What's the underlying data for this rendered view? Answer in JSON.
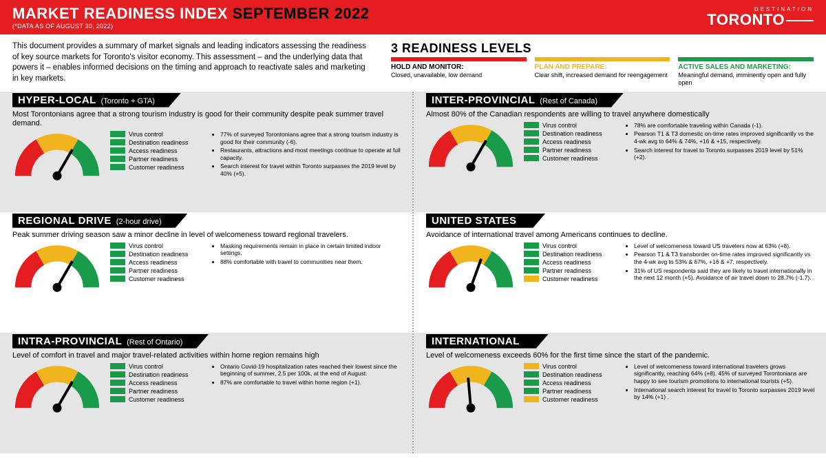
{
  "colors": {
    "red": "#e41d21",
    "yellow": "#f0b41e",
    "green": "#199b4a",
    "black": "#000000",
    "gray": "#e5e5e5"
  },
  "header": {
    "title_prefix": "MARKET READINESS INDEX",
    "title_month": "SEPTEMBER 2022",
    "subtitle": "(*DATA AS OF AUGUST 30, 2022)",
    "logo_small": "DESTINATION",
    "logo_big": "TORONTO"
  },
  "intro": "This document provides a summary of market signals and leading indicators assessing the readiness of key source markets for Toronto's visitor economy. This assessment – and the underlying data that powers it – enables informed decisions on the timing and approach to reactivate sales and marketing in key markets.",
  "readiness_title": "3 READINESS LEVELS",
  "levels": [
    {
      "color": "red",
      "name": "HOLD AND MONITOR:",
      "desc": "Closed, unavailable, low demand"
    },
    {
      "color": "yellow",
      "name": "PLAN AND PREPARE:",
      "desc": "Clear shift, increased demand for reengagement"
    },
    {
      "color": "green",
      "name": "ACTIVE SALES AND MARKETING:",
      "desc": "Meaningful demand, imminently open and fully open"
    }
  ],
  "indicator_labels": [
    "Virus control",
    "Destination readiness",
    "Access readiness",
    "Partner readiness",
    "Customer readiness"
  ],
  "gauge": {
    "arc_start_deg": -180,
    "arc_end_deg": 0,
    "seg_sweep_deg": 60
  },
  "markets": [
    {
      "id": "hyper-local",
      "gray": true,
      "col": 0,
      "name": "HYPER-LOCAL",
      "region": "(Toronto + GTA)",
      "summary": "Most Torontonians agree that a strong tourism industry is good for their community despite peak summer travel demand.",
      "needle_deg": 30,
      "indicators": [
        "green",
        "green",
        "green",
        "green",
        "green"
      ],
      "bullets": [
        "77% of surveyed Torontonians agree that a strong tourism industry is good for their community (-6).",
        "Restaurants, attractions and most meetings continue to operate at full capacity.",
        "Search interest for travel within Toronto surpasses the 2019 level by 40% (+5)."
      ]
    },
    {
      "id": "regional-drive",
      "gray": false,
      "col": 0,
      "name": "REGIONAL DRIVE",
      "region": "(2-hour drive)",
      "summary": "Peak summer driving season saw a minor decline in level of welcomeness toward regional travelers.",
      "needle_deg": 30,
      "indicators": [
        "green",
        "green",
        "green",
        "green",
        "green"
      ],
      "bullets": [
        "Masking requirements remain in place in certain limited indoor settings.",
        "88% comfortable with travel to communities near them."
      ]
    },
    {
      "id": "intra-provincial",
      "gray": true,
      "col": 0,
      "name": "INTRA-PROVINCIAL",
      "region": "(Rest of Ontario)",
      "summary": "Level of comfort in travel and major travel-related activities within home region remains high",
      "needle_deg": 30,
      "indicators": [
        "green",
        "green",
        "green",
        "green",
        "green"
      ],
      "bullets": [
        "Ontario Covid-19 hospitalization rates reached their lowest since the beginning of summer, 2.5 per 100k, at the end of August.",
        "87% are comfortable to travel within home region (+1)."
      ]
    },
    {
      "id": "inter-provincial",
      "gray": true,
      "col": 1,
      "name": "INTER-PROVINCIAL",
      "region": "(Rest of Canada)",
      "summary": "Almost 80% of the Canadian respondents are willing to travel anywhere domestically",
      "needle_deg": 30,
      "indicators": [
        "green",
        "green",
        "green",
        "green",
        "green"
      ],
      "bullets": [
        "78% are comfortable traveling within Canada (-1).",
        "Pearson T1 & T3 domestic on-time rates improved significantly vs the 4-wk avg to 64% & 74%, +16 & +15, respectively.",
        "Search interest for travel to Toronto surpasses 2019 level by 51% (+2)."
      ]
    },
    {
      "id": "united-states",
      "gray": false,
      "col": 1,
      "name": "UNITED STATES",
      "region": "",
      "summary": "Avoidance of international travel among Americans continues to decline.",
      "needle_deg": 20,
      "indicators": [
        "green",
        "green",
        "green",
        "green",
        "yellow"
      ],
      "bullets": [
        "Level of welcomeness toward US travelers now at 63% (+8).",
        "Pearson T1 & T3 transborder on-time rates improved significantly vs the 4-wk avg to 53% & 67%, +16 & +7, respectively.",
        "31% of US respondents said they are likely to travel internationally in the next 12 month (+5). Avoidance of air travel down to 28.7% (-1.7)."
      ]
    },
    {
      "id": "international",
      "gray": true,
      "col": 1,
      "name": "INTERNATIONAL",
      "region": "",
      "summary": "Level of welcomeness exceeds 60% for the first time since the start of the pandemic.",
      "needle_deg": -5,
      "indicators": [
        "yellow",
        "green",
        "green",
        "green",
        "yellow"
      ],
      "bullets": [
        "Level of welcomeness toward international travelers grows significantly, reaching 64% (+8). 45% of surveyed Torontonians are happy to see tourism promotions to international tourists (+5).",
        "International search interest for travel to Toronto surpasses 2019 level by 14% (+1) ."
      ]
    }
  ]
}
